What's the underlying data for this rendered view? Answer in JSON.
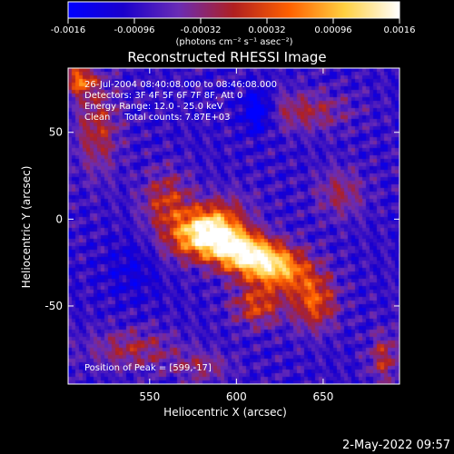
{
  "chart_data": {
    "type": "heatmap",
    "title": "Reconstructed RHESSI Image",
    "xlabel": "Heliocentric X (arcsec)",
    "ylabel": "Heliocentric Y (arcsec)",
    "xlim": [
      503,
      694
    ],
    "ylim": [
      -95,
      87
    ],
    "x_ticks": [
      550,
      600,
      650
    ],
    "y_ticks": [
      50,
      0,
      -50
    ],
    "colorbar": {
      "range": [
        -0.0016,
        0.0016
      ],
      "ticks": [
        "-0.0016",
        "-0.00096",
        "-0.00032",
        "0.00032",
        "0.00096",
        "0.0016"
      ],
      "unit_label": "(photons cm⁻² s⁻¹ asec⁻²)",
      "colors": [
        "#0000ff",
        "#1a00cc",
        "#6a2cb5",
        "#b01f20",
        "#ff6000",
        "#ffd040",
        "#ffffff"
      ]
    },
    "annotations": [
      "26-Jul-2004 08:40:08.000 to 08:46:08.000",
      "Detectors: 3F 4F 5F 6F 7F 8F, Att 0",
      "Energy Range: 12.0 - 25.0 keV",
      "Clean     Total counts: 7.87E+03"
    ],
    "peak_label": "Position of Peak = [599,-17]",
    "peak": {
      "x": 599,
      "y": -17
    },
    "sources": [
      {
        "x": 599,
        "y": -17,
        "sx": 18,
        "sy": 9,
        "amp": 1.0,
        "angle": -20
      },
      {
        "x": 582,
        "y": -5,
        "sx": 16,
        "sy": 9,
        "amp": 0.6,
        "angle": 30
      },
      {
        "x": 625,
        "y": -28,
        "sx": 14,
        "sy": 9,
        "amp": 0.55,
        "angle": -10
      },
      {
        "x": 645,
        "y": -48,
        "sx": 9,
        "sy": 11,
        "amp": 0.5,
        "angle": 0
      },
      {
        "x": 612,
        "y": -50,
        "sx": 10,
        "sy": 8,
        "amp": 0.45,
        "angle": 0
      },
      {
        "x": 560,
        "y": 10,
        "sx": 10,
        "sy": 12,
        "amp": 0.4,
        "angle": 0
      },
      {
        "x": 520,
        "y": 52,
        "sx": 9,
        "sy": 18,
        "amp": 0.35,
        "angle": 0
      },
      {
        "x": 510,
        "y": 80,
        "sx": 6,
        "sy": 6,
        "amp": 0.55,
        "angle": 0
      },
      {
        "x": 640,
        "y": 62,
        "sx": 18,
        "sy": 8,
        "amp": 0.3,
        "angle": 0
      },
      {
        "x": 660,
        "y": 15,
        "sx": 10,
        "sy": 10,
        "amp": 0.28,
        "angle": 0
      },
      {
        "x": 540,
        "y": -75,
        "sx": 18,
        "sy": 8,
        "amp": 0.3,
        "angle": 0
      },
      {
        "x": 580,
        "y": -85,
        "sx": 12,
        "sy": 6,
        "amp": 0.25,
        "angle": 0
      },
      {
        "x": 685,
        "y": -80,
        "sx": 6,
        "sy": 10,
        "amp": 0.35,
        "angle": 0
      },
      {
        "x": 612,
        "y": 62,
        "sx": 6,
        "sy": 8,
        "amp": -0.45,
        "angle": 0
      },
      {
        "x": 540,
        "y": -30,
        "sx": 12,
        "sy": 12,
        "amp": -0.15,
        "angle": 0
      }
    ]
  },
  "footer": {
    "timestamp": "2-May-2022 09:57"
  }
}
